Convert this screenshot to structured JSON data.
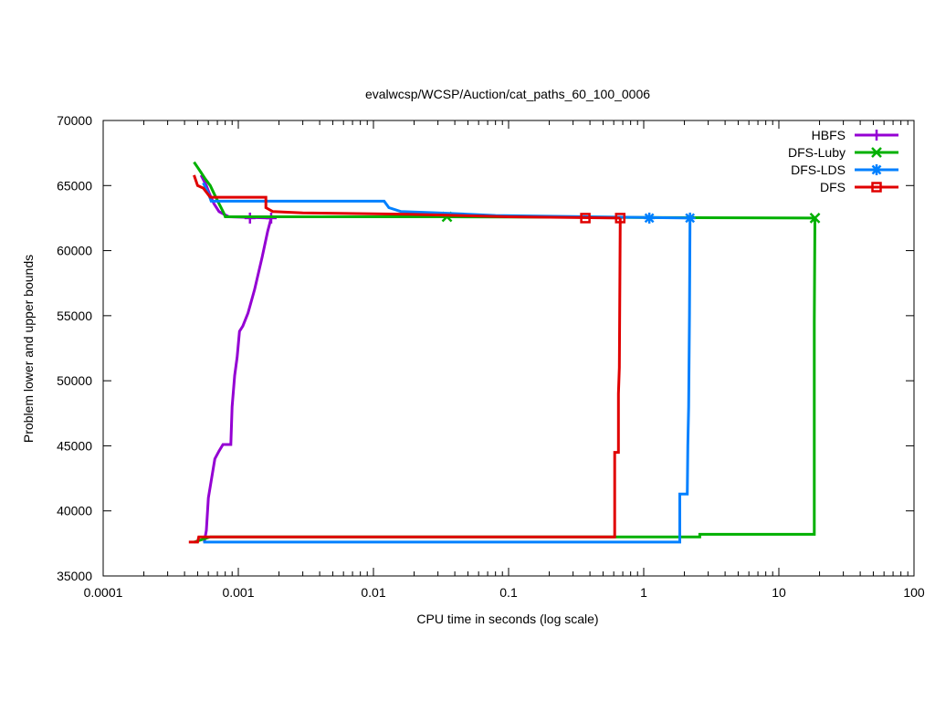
{
  "chart_data": {
    "type": "line",
    "title": "evalwcsp/WCSP/Auction/cat_paths_60_100_0006",
    "xlabel": "CPU time in seconds (log scale)",
    "ylabel": "Problem lower and upper bounds",
    "xscale": "log",
    "xlim": [
      0.0001,
      100
    ],
    "ylim": [
      35000,
      70000
    ],
    "x_ticks": [
      0.0001,
      0.001,
      0.01,
      0.1,
      1,
      10,
      100
    ],
    "x_tick_labels": [
      "0.0001",
      "0.001",
      "0.01",
      "0.1",
      "1",
      "10",
      "100"
    ],
    "y_ticks": [
      35000,
      40000,
      45000,
      50000,
      55000,
      60000,
      65000,
      70000
    ],
    "y_tick_labels": [
      "35000",
      "40000",
      "45000",
      "50000",
      "55000",
      "60000",
      "65000",
      "70000"
    ],
    "grid": false,
    "legend_position": "top-right",
    "series": [
      {
        "name": "HBFS",
        "color": "#9400d3",
        "marker": "plus",
        "marker_points": [
          [
            0.00122,
            62500
          ],
          [
            0.00175,
            62500
          ]
        ],
        "lines": [
          [
            [
              0.00053,
              65800
            ],
            [
              0.00058,
              65000
            ],
            [
              0.00061,
              64400
            ],
            [
              0.00066,
              63600
            ],
            [
              0.00072,
              63000
            ],
            [
              0.00085,
              62600
            ],
            [
              0.00175,
              62500
            ]
          ],
          [
            [
              0.00056,
              37600
            ],
            [
              0.00058,
              38500
            ],
            [
              0.0006,
              41000
            ],
            [
              0.00067,
              44000
            ],
            [
              0.00072,
              44600
            ],
            [
              0.00077,
              45100
            ],
            [
              0.00088,
              45100
            ],
            [
              0.0009,
              48000
            ],
            [
              0.00094,
              50400
            ],
            [
              0.00098,
              51800
            ],
            [
              0.00102,
              53800
            ],
            [
              0.00108,
              54200
            ],
            [
              0.00118,
              55200
            ],
            [
              0.00132,
              57000
            ],
            [
              0.0015,
              59500
            ],
            [
              0.00165,
              61500
            ],
            [
              0.00175,
              62500
            ]
          ]
        ]
      },
      {
        "name": "DFS-Luby",
        "color": "#00b000",
        "marker": "cross",
        "marker_points": [
          [
            0.035,
            62600
          ],
          [
            18.5,
            62500
          ]
        ],
        "lines": [
          [
            [
              0.00047,
              66800
            ],
            [
              0.0005,
              66400
            ],
            [
              0.00053,
              66000
            ],
            [
              0.00057,
              65500
            ],
            [
              0.00062,
              65000
            ],
            [
              0.00066,
              64400
            ],
            [
              0.00072,
              63600
            ],
            [
              0.00078,
              62900
            ],
            [
              0.0008,
              62600
            ],
            [
              0.035,
              62600
            ],
            [
              18.5,
              62500
            ]
          ],
          [
            [
              0.00047,
              37600
            ],
            [
              0.00062,
              38000
            ],
            [
              2.6,
              38000
            ],
            [
              2.6,
              38200
            ],
            [
              18.3,
              38200
            ],
            [
              18.3,
              54500
            ],
            [
              18.5,
              62500
            ]
          ]
        ]
      },
      {
        "name": "DFS-LDS",
        "color": "#0080ff",
        "marker": "star",
        "marker_points": [
          [
            1.1,
            62500
          ],
          [
            2.2,
            62500
          ]
        ],
        "lines": [
          [
            [
              0.00055,
              65200
            ],
            [
              0.0006,
              64400
            ],
            [
              0.00063,
              63800
            ],
            [
              0.012,
              63800
            ],
            [
              0.013,
              63300
            ],
            [
              0.016,
              63000
            ],
            [
              0.03,
              62900
            ],
            [
              0.08,
              62700
            ],
            [
              2.2,
              62500
            ]
          ],
          [
            [
              0.00055,
              37600
            ],
            [
              1.85,
              37600
            ],
            [
              1.85,
              41300
            ],
            [
              2.1,
              41300
            ],
            [
              2.12,
              45000
            ],
            [
              2.15,
              48000
            ],
            [
              2.18,
              55000
            ],
            [
              2.2,
              62500
            ]
          ]
        ]
      },
      {
        "name": "DFS",
        "color": "#e00000",
        "marker": "square",
        "marker_points": [
          [
            0.37,
            62500
          ],
          [
            0.67,
            62500
          ]
        ],
        "lines": [
          [
            [
              0.00047,
              65800
            ],
            [
              0.0005,
              65000
            ],
            [
              0.00055,
              64800
            ],
            [
              0.00062,
              64100
            ],
            [
              0.0016,
              64100
            ],
            [
              0.0016,
              63300
            ],
            [
              0.0018,
              63000
            ],
            [
              0.003,
              62900
            ],
            [
              0.018,
              62800
            ],
            [
              0.1,
              62600
            ],
            [
              0.67,
              62500
            ]
          ],
          [
            [
              0.00043,
              37600
            ],
            [
              0.0005,
              37600
            ],
            [
              0.00051,
              38000
            ],
            [
              0.61,
              38000
            ],
            [
              0.61,
              44500
            ],
            [
              0.65,
              44500
            ],
            [
              0.65,
              49000
            ],
            [
              0.66,
              51000
            ],
            [
              0.67,
              62500
            ]
          ]
        ]
      }
    ]
  }
}
